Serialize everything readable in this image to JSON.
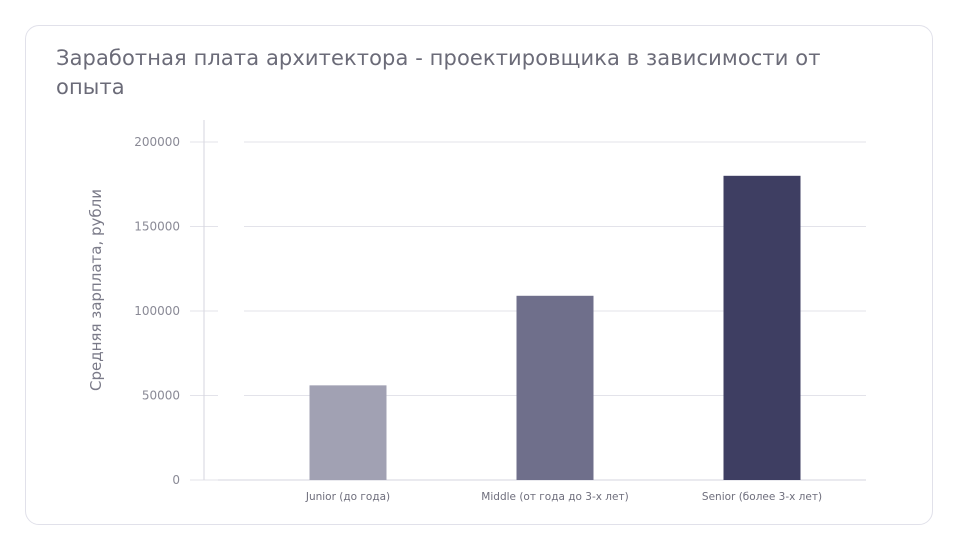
{
  "chart_data": {
    "type": "bar",
    "title": "Заработная плата архитектора - проектировщика в зависимости от опыта",
    "xlabel": "",
    "ylabel": "Средняя зарплата, рубли",
    "categories": [
      "Junior (до года)",
      "Middle (от года до 3-х лет)",
      "Senior (более 3-х лет)"
    ],
    "values": [
      56000,
      109000,
      180000
    ],
    "bar_colors": [
      "#a1a1b3",
      "#6f6f8b",
      "#3e3e62"
    ],
    "ylim": [
      0,
      200000
    ],
    "yticks": [
      0,
      50000,
      100000,
      150000,
      200000
    ],
    "ytick_labels": [
      "0",
      "50000",
      "100000",
      "150000",
      "200000"
    ],
    "grid": true,
    "legend": "none"
  },
  "colors": {
    "grid": "#e3e3ea",
    "axis": "#d6d6df",
    "card_border": "#e1e1ea",
    "title": "#6b6b78"
  }
}
